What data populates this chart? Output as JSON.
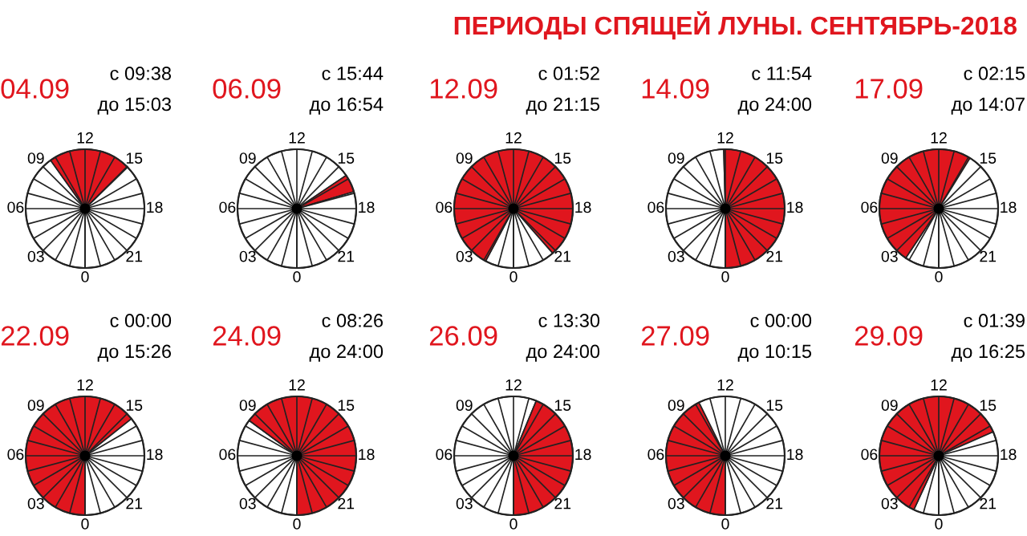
{
  "chart_data": [
    {
      "type": "other",
      "title": "ПЕРИОДЫ СПЯЩЕЙ ЛУНЫ. СЕНТЯБРЬ-2018"
    },
    {
      "type": "pie",
      "title": "04.09",
      "categories": [
        null,
        null,
        null
      ],
      "values": [
        40.14,
        22.57,
        37.29
      ],
      "colors": [
        "#ffffff",
        "#e0161e",
        "#ffffff"
      ],
      "annotations": [
        "с 09:38",
        "до 15:03",
        "0",
        "03",
        "06",
        "09",
        "12",
        "15",
        "18",
        "21"
      ]
    },
    {
      "type": "pie",
      "title": "06.09",
      "categories": [
        null,
        null,
        null
      ],
      "values": [
        65.56,
        4.86,
        29.58
      ],
      "colors": [
        "#ffffff",
        "#e0161e",
        "#ffffff"
      ],
      "annotations": [
        "с 15:44",
        "до 16:54",
        "0",
        "03",
        "06",
        "09",
        "12",
        "15",
        "18",
        "21"
      ]
    },
    {
      "type": "pie",
      "title": "12.09",
      "categories": [
        null,
        null,
        null
      ],
      "values": [
        7.78,
        80.76,
        11.46
      ],
      "colors": [
        "#ffffff",
        "#e0161e",
        "#ffffff"
      ],
      "annotations": [
        "с 01:52",
        "до 21:15",
        "0",
        "03",
        "06",
        "09",
        "12",
        "15",
        "18",
        "21"
      ]
    },
    {
      "type": "pie",
      "title": "14.09",
      "categories": [
        null,
        null
      ],
      "values": [
        49.58,
        50.42
      ],
      "colors": [
        "#ffffff",
        "#e0161e"
      ],
      "annotations": [
        "с 11:54",
        "до 24:00",
        "0",
        "03",
        "06",
        "09",
        "12",
        "15",
        "18",
        "21"
      ]
    },
    {
      "type": "pie",
      "title": "17.09",
      "categories": [
        null,
        null,
        null
      ],
      "values": [
        9.38,
        49.44,
        41.18
      ],
      "colors": [
        "#ffffff",
        "#e0161e",
        "#ffffff"
      ],
      "annotations": [
        "с 02:15",
        "до 14:07",
        "0",
        "03",
        "06",
        "09",
        "12",
        "15",
        "18",
        "21"
      ]
    },
    {
      "type": "pie",
      "title": "22.09",
      "categories": [
        null,
        null
      ],
      "values": [
        64.31,
        35.69
      ],
      "colors": [
        "#e0161e",
        "#ffffff"
      ],
      "annotations": [
        "с 00:00",
        "до 15:26",
        "0",
        "03",
        "06",
        "09",
        "12",
        "15",
        "18",
        "21"
      ]
    },
    {
      "type": "pie",
      "title": "24.09",
      "categories": [
        null,
        null
      ],
      "values": [
        35.14,
        64.86
      ],
      "colors": [
        "#ffffff",
        "#e0161e"
      ],
      "annotations": [
        "с 08:26",
        "до 24:00",
        "0",
        "03",
        "06",
        "09",
        "12",
        "15",
        "18",
        "21"
      ]
    },
    {
      "type": "pie",
      "title": "26.09",
      "categories": [
        null,
        null
      ],
      "values": [
        56.25,
        43.75
      ],
      "colors": [
        "#ffffff",
        "#e0161e"
      ],
      "annotations": [
        "с 13:30",
        "до 24:00",
        "0",
        "03",
        "06",
        "09",
        "12",
        "15",
        "18",
        "21"
      ]
    },
    {
      "type": "pie",
      "title": "27.09",
      "categories": [
        null,
        null
      ],
      "values": [
        42.71,
        57.29
      ],
      "colors": [
        "#e0161e",
        "#ffffff"
      ],
      "annotations": [
        "с 00:00",
        "до 10:15",
        "0",
        "03",
        "06",
        "09",
        "12",
        "15",
        "18",
        "21"
      ]
    },
    {
      "type": "pie",
      "title": "29.09",
      "categories": [
        null,
        null,
        null
      ],
      "values": [
        6.88,
        61.53,
        31.59
      ],
      "colors": [
        "#ffffff",
        "#e0161e",
        "#ffffff"
      ],
      "annotations": [
        "с 01:39",
        "до 16:25",
        "0",
        "03",
        "06",
        "09",
        "12",
        "15",
        "18",
        "21"
      ]
    }
  ]
}
